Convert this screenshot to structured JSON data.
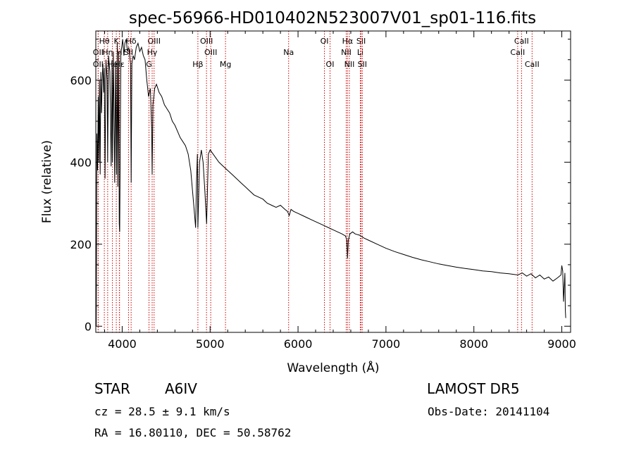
{
  "chart_data": {
    "type": "line",
    "title": "spec-56966-HD010402N523007V01_sp01-116.fits",
    "xlabel": "Wavelength (Å)",
    "ylabel": "Flux (relative)",
    "xlim": [
      3700,
      9100
    ],
    "ylim": [
      -15,
      720
    ],
    "x_ticks": [
      4000,
      5000,
      6000,
      7000,
      8000,
      9000
    ],
    "y_ticks": [
      0,
      200,
      400,
      600
    ],
    "line_color": "#000000",
    "marker_color": "#cc0000",
    "series": [
      {
        "x": [
          3705,
          3712,
          3720,
          3728,
          3735,
          3742,
          3750,
          3757,
          3765,
          3772,
          3780,
          3790,
          3797,
          3805,
          3815,
          3830,
          3835,
          3845,
          3860,
          3875,
          3885,
          3890,
          3900,
          3915,
          3925,
          3935,
          3945,
          3950,
          3960,
          3967,
          3972,
          3985,
          3995,
          4005,
          4020,
          4030,
          4045,
          4060,
          4075,
          4095,
          4102,
          4110,
          4125,
          4140,
          4160,
          4180,
          4200,
          4220,
          4240,
          4260,
          4280,
          4300,
          4320,
          4335,
          4341,
          4350,
          4370,
          4390,
          4420,
          4450,
          4480,
          4510,
          4540,
          4570,
          4600,
          4630,
          4660,
          4690,
          4720,
          4750,
          4780,
          4800,
          4820,
          4835,
          4845,
          4855,
          4861,
          4868,
          4880,
          4900,
          4920,
          4940,
          4960,
          4980,
          5000,
          5050,
          5100,
          5150,
          5200,
          5250,
          5300,
          5350,
          5400,
          5450,
          5500,
          5550,
          5600,
          5650,
          5700,
          5750,
          5800,
          5850,
          5880,
          5890,
          5900,
          5920,
          5950,
          6000,
          6050,
          6100,
          6150,
          6200,
          6250,
          6300,
          6350,
          6400,
          6450,
          6500,
          6540,
          6555,
          6563,
          6572,
          6590,
          6620,
          6650,
          6700,
          6750,
          6800,
          6900,
          7000,
          7100,
          7200,
          7300,
          7400,
          7500,
          7600,
          7700,
          7800,
          7900,
          8000,
          8100,
          8200,
          8300,
          8400,
          8500,
          8550,
          8600,
          8650,
          8700,
          8750,
          8800,
          8850,
          8900,
          8950,
          8990,
          9000,
          9010,
          9020,
          9035,
          9040,
          9045
        ],
        "y": [
          0,
          470,
          380,
          560,
          400,
          600,
          370,
          620,
          520,
          600,
          640,
          570,
          630,
          360,
          650,
          600,
          400,
          660,
          620,
          390,
          650,
          400,
          670,
          350,
          640,
          370,
          690,
          340,
          670,
          250,
          230,
          670,
          680,
          700,
          660,
          690,
          700,
          670,
          680,
          640,
          350,
          640,
          660,
          650,
          680,
          690,
          670,
          680,
          660,
          650,
          600,
          560,
          580,
          480,
          370,
          540,
          580,
          590,
          570,
          560,
          540,
          530,
          520,
          500,
          490,
          475,
          460,
          450,
          440,
          420,
          380,
          330,
          280,
          240,
          350,
          420,
          240,
          300,
          400,
          430,
          400,
          330,
          250,
          420,
          430,
          415,
          400,
          390,
          380,
          370,
          360,
          350,
          340,
          330,
          320,
          315,
          310,
          300,
          295,
          290,
          295,
          285,
          280,
          275,
          270,
          285,
          280,
          275,
          270,
          265,
          260,
          255,
          250,
          245,
          240,
          235,
          230,
          225,
          220,
          210,
          165,
          210,
          225,
          230,
          225,
          222,
          215,
          210,
          200,
          190,
          182,
          175,
          168,
          162,
          157,
          152,
          148,
          144,
          141,
          138,
          135,
          133,
          130,
          128,
          125,
          130,
          122,
          128,
          118,
          125,
          115,
          120,
          110,
          118,
          125,
          148,
          135,
          60,
          130,
          40,
          20
        ]
      }
    ],
    "line_markers": [
      {
        "label": "Hθ",
        "x": 3797,
        "row": 1
      },
      {
        "label": "OII",
        "x": 3727,
        "row": 2
      },
      {
        "label": "OII",
        "x": 3727,
        "row": 3
      },
      {
        "label": "Hη",
        "x": 3835,
        "row": 2
      },
      {
        "label": "K",
        "x": 3933,
        "row": 1
      },
      {
        "label": "He",
        "x": 3889,
        "row": 3
      },
      {
        "label": "H",
        "x": 3968,
        "row": 2
      },
      {
        "label": "Hε",
        "x": 3970,
        "row": 3
      },
      {
        "label": "Hδ",
        "x": 4102,
        "row": 1
      },
      {
        "label": "SII",
        "x": 4072,
        "row": 2
      },
      {
        "label": "OIII",
        "x": 4363,
        "row": 1
      },
      {
        "label": "Hγ",
        "x": 4341,
        "row": 2
      },
      {
        "label": "G",
        "x": 4305,
        "row": 3
      },
      {
        "label": "OIII",
        "x": 4959,
        "row": 1
      },
      {
        "label": "OIII",
        "x": 5007,
        "row": 2
      },
      {
        "label": "Hβ",
        "x": 4861,
        "row": 3
      },
      {
        "label": "Mg",
        "x": 5175,
        "row": 3
      },
      {
        "label": "Na",
        "x": 5893,
        "row": 2
      },
      {
        "label": "OI",
        "x": 6300,
        "row": 1
      },
      {
        "label": "OI",
        "x": 6364,
        "row": 3
      },
      {
        "label": "Hα",
        "x": 6563,
        "row": 1
      },
      {
        "label": "NII",
        "x": 6548,
        "row": 2
      },
      {
        "label": "NII",
        "x": 6584,
        "row": 3
      },
      {
        "label": "SII",
        "x": 6717,
        "row": 1
      },
      {
        "label": "Li",
        "x": 6708,
        "row": 2
      },
      {
        "label": "SII",
        "x": 6731,
        "row": 3
      },
      {
        "label": "CaII",
        "x": 8542,
        "row": 1
      },
      {
        "label": "CaII",
        "x": 8498,
        "row": 2
      },
      {
        "label": "CaII",
        "x": 8662,
        "row": 3
      }
    ]
  },
  "info": {
    "object_class": "STAR",
    "subclass": "A6IV",
    "survey": "LAMOST DR5",
    "redshift_text": "cz = 28.5 ± 9.1 km/s",
    "obs_date": "Obs-Date: 20141104",
    "coords": "RA =  16.80110, DEC =  50.58762"
  }
}
